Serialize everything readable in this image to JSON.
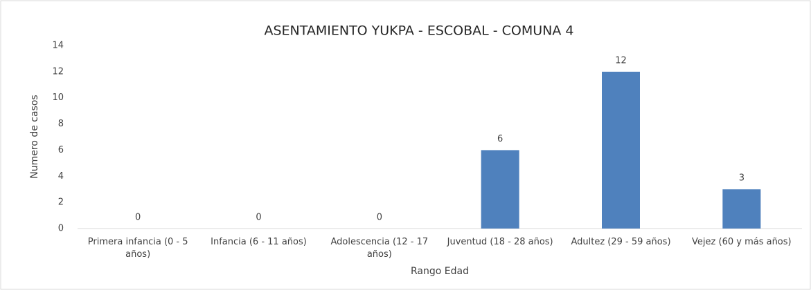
{
  "chart_data": {
    "type": "bar",
    "title": "ASENTAMIENTO YUKPA - ESCOBAL - COMUNA 4",
    "x_label": "Rango Edad",
    "y_label": "Numero de casos",
    "categories": [
      "Primera infancia (0 - 5 años)",
      "Infancia (6 - 11 años)",
      "Adolescencia (12 - 17 años)",
      "Juventud (18 - 28 años)",
      "Adultez (29 - 59 años)",
      "Vejez (60 y más años)"
    ],
    "values": [
      0,
      0,
      0,
      6,
      12,
      3
    ],
    "color": "#4f81bd",
    "ylim": [
      0,
      14
    ],
    "yticks": [
      0,
      2,
      4,
      6,
      8,
      10,
      12,
      14
    ],
    "grid": false
  }
}
